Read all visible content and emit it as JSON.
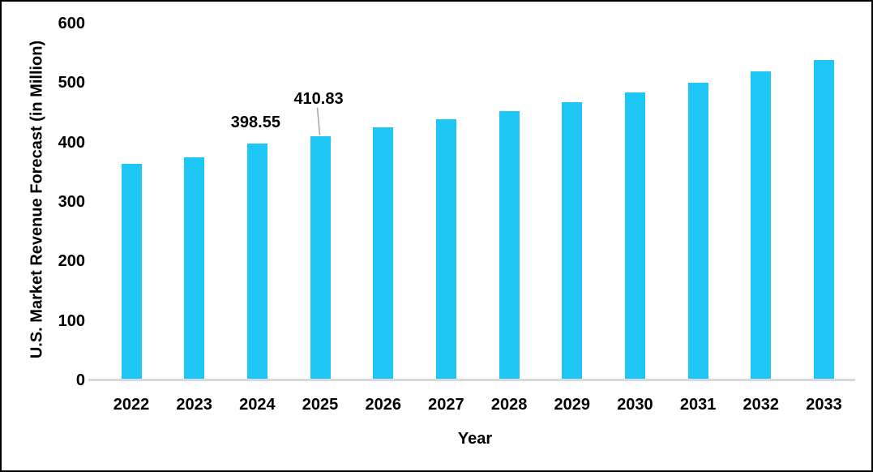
{
  "chart_data": {
    "type": "bar",
    "title": "",
    "xlabel": "Year",
    "ylabel": "U.S. Market Revenue Forecast (in Million)",
    "categories": [
      "2022",
      "2023",
      "2024",
      "2025",
      "2026",
      "2027",
      "2028",
      "2029",
      "2030",
      "2031",
      "2032",
      "2033"
    ],
    "values": [
      364,
      375,
      398.55,
      410.83,
      425,
      439,
      453,
      468,
      484,
      501,
      520,
      538
    ],
    "ylim": [
      0,
      600
    ],
    "yticks": [
      0,
      100,
      200,
      300,
      400,
      500,
      600
    ],
    "grid": false,
    "legend": false,
    "bar_color": "#1EC7F6",
    "axis_line_color": "#D9D9D9",
    "leader_line_color": "#A6A6A6",
    "text_color": "#000000",
    "data_labels": [
      {
        "category": "2024",
        "text": "398.55",
        "leader_line": false
      },
      {
        "category": "2025",
        "text": "410.83",
        "leader_line": true
      }
    ]
  }
}
